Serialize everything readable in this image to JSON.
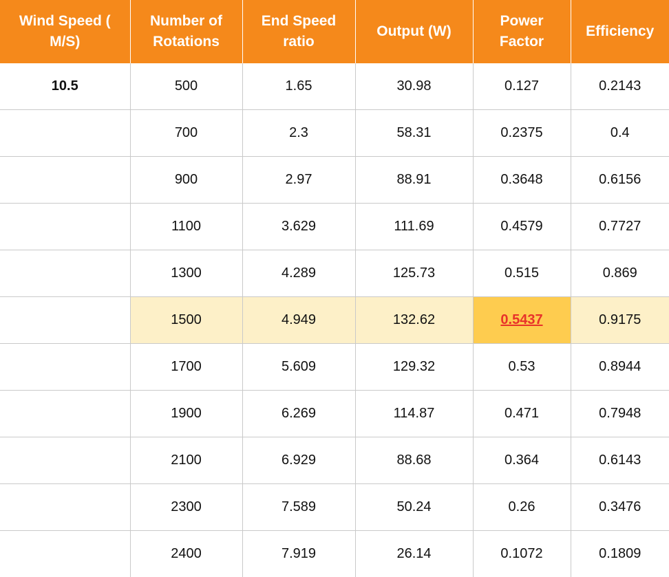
{
  "table": {
    "headers": [
      "Wind Speed ( M/S)",
      "Number of Rotations",
      "End Speed ratio",
      "Output (W)",
      "Power Factor",
      "Efficiency"
    ],
    "rows": [
      [
        "10.5",
        "500",
        "1.65",
        "30.98",
        "0.127",
        "0.2143"
      ],
      [
        "",
        "700",
        "2.3",
        "58.31",
        "0.2375",
        "0.4"
      ],
      [
        "",
        "900",
        "2.97",
        "88.91",
        "0.3648",
        "0.6156"
      ],
      [
        "",
        "1100",
        "3.629",
        "111.69",
        "0.4579",
        "0.7727"
      ],
      [
        "",
        "1300",
        "4.289",
        "125.73",
        "0.515",
        "0.869"
      ],
      [
        "",
        "1500",
        "4.949",
        "132.62",
        "0.5437",
        "0.9175"
      ],
      [
        "",
        "1700",
        "5.609",
        "129.32",
        "0.53",
        "0.8944"
      ],
      [
        "",
        "1900",
        "6.269",
        "114.87",
        "0.471",
        "0.7948"
      ],
      [
        "",
        "2100",
        "6.929",
        "88.68",
        "0.364",
        "0.6143"
      ],
      [
        "",
        "2300",
        "7.589",
        "50.24",
        "0.26",
        "0.3476"
      ],
      [
        "",
        "2400",
        "7.919",
        "26.14",
        "0.1072",
        "0.1809"
      ]
    ]
  },
  "colors": {
    "header_bg": "#f5891b",
    "header_text": "#ffffff",
    "highlight_row_bg": "#fdf0c8",
    "best_cell_bg": "#fecc4f",
    "best_value_text": "#e8322a"
  }
}
